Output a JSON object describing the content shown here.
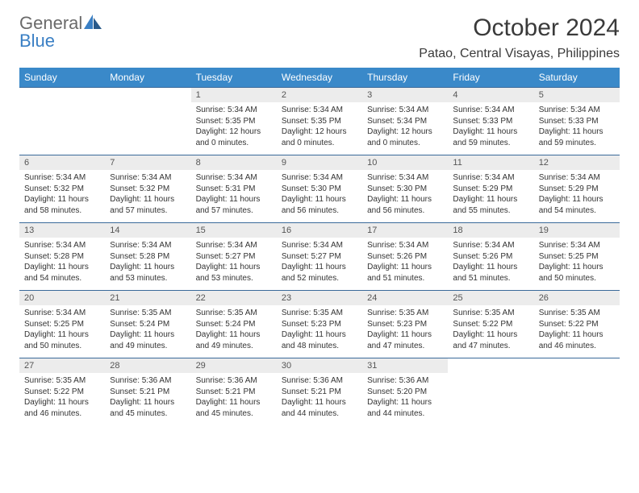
{
  "logo": {
    "general": "General",
    "blue": "Blue"
  },
  "title": "October 2024",
  "location": "Patao, Central Visayas, Philippines",
  "colors": {
    "header_bg": "#3a89c9",
    "header_text": "#ffffff",
    "daynum_bg": "#ececec",
    "border": "#3a6a9a",
    "logo_gray": "#6a6a6a",
    "logo_blue": "#3a7fc4"
  },
  "day_names": [
    "Sunday",
    "Monday",
    "Tuesday",
    "Wednesday",
    "Thursday",
    "Friday",
    "Saturday"
  ],
  "weeks": [
    [
      {
        "n": "",
        "sr": "",
        "ss": "",
        "dl": ""
      },
      {
        "n": "",
        "sr": "",
        "ss": "",
        "dl": ""
      },
      {
        "n": "1",
        "sr": "Sunrise: 5:34 AM",
        "ss": "Sunset: 5:35 PM",
        "dl": "Daylight: 12 hours and 0 minutes."
      },
      {
        "n": "2",
        "sr": "Sunrise: 5:34 AM",
        "ss": "Sunset: 5:35 PM",
        "dl": "Daylight: 12 hours and 0 minutes."
      },
      {
        "n": "3",
        "sr": "Sunrise: 5:34 AM",
        "ss": "Sunset: 5:34 PM",
        "dl": "Daylight: 12 hours and 0 minutes."
      },
      {
        "n": "4",
        "sr": "Sunrise: 5:34 AM",
        "ss": "Sunset: 5:33 PM",
        "dl": "Daylight: 11 hours and 59 minutes."
      },
      {
        "n": "5",
        "sr": "Sunrise: 5:34 AM",
        "ss": "Sunset: 5:33 PM",
        "dl": "Daylight: 11 hours and 59 minutes."
      }
    ],
    [
      {
        "n": "6",
        "sr": "Sunrise: 5:34 AM",
        "ss": "Sunset: 5:32 PM",
        "dl": "Daylight: 11 hours and 58 minutes."
      },
      {
        "n": "7",
        "sr": "Sunrise: 5:34 AM",
        "ss": "Sunset: 5:32 PM",
        "dl": "Daylight: 11 hours and 57 minutes."
      },
      {
        "n": "8",
        "sr": "Sunrise: 5:34 AM",
        "ss": "Sunset: 5:31 PM",
        "dl": "Daylight: 11 hours and 57 minutes."
      },
      {
        "n": "9",
        "sr": "Sunrise: 5:34 AM",
        "ss": "Sunset: 5:30 PM",
        "dl": "Daylight: 11 hours and 56 minutes."
      },
      {
        "n": "10",
        "sr": "Sunrise: 5:34 AM",
        "ss": "Sunset: 5:30 PM",
        "dl": "Daylight: 11 hours and 56 minutes."
      },
      {
        "n": "11",
        "sr": "Sunrise: 5:34 AM",
        "ss": "Sunset: 5:29 PM",
        "dl": "Daylight: 11 hours and 55 minutes."
      },
      {
        "n": "12",
        "sr": "Sunrise: 5:34 AM",
        "ss": "Sunset: 5:29 PM",
        "dl": "Daylight: 11 hours and 54 minutes."
      }
    ],
    [
      {
        "n": "13",
        "sr": "Sunrise: 5:34 AM",
        "ss": "Sunset: 5:28 PM",
        "dl": "Daylight: 11 hours and 54 minutes."
      },
      {
        "n": "14",
        "sr": "Sunrise: 5:34 AM",
        "ss": "Sunset: 5:28 PM",
        "dl": "Daylight: 11 hours and 53 minutes."
      },
      {
        "n": "15",
        "sr": "Sunrise: 5:34 AM",
        "ss": "Sunset: 5:27 PM",
        "dl": "Daylight: 11 hours and 53 minutes."
      },
      {
        "n": "16",
        "sr": "Sunrise: 5:34 AM",
        "ss": "Sunset: 5:27 PM",
        "dl": "Daylight: 11 hours and 52 minutes."
      },
      {
        "n": "17",
        "sr": "Sunrise: 5:34 AM",
        "ss": "Sunset: 5:26 PM",
        "dl": "Daylight: 11 hours and 51 minutes."
      },
      {
        "n": "18",
        "sr": "Sunrise: 5:34 AM",
        "ss": "Sunset: 5:26 PM",
        "dl": "Daylight: 11 hours and 51 minutes."
      },
      {
        "n": "19",
        "sr": "Sunrise: 5:34 AM",
        "ss": "Sunset: 5:25 PM",
        "dl": "Daylight: 11 hours and 50 minutes."
      }
    ],
    [
      {
        "n": "20",
        "sr": "Sunrise: 5:34 AM",
        "ss": "Sunset: 5:25 PM",
        "dl": "Daylight: 11 hours and 50 minutes."
      },
      {
        "n": "21",
        "sr": "Sunrise: 5:35 AM",
        "ss": "Sunset: 5:24 PM",
        "dl": "Daylight: 11 hours and 49 minutes."
      },
      {
        "n": "22",
        "sr": "Sunrise: 5:35 AM",
        "ss": "Sunset: 5:24 PM",
        "dl": "Daylight: 11 hours and 49 minutes."
      },
      {
        "n": "23",
        "sr": "Sunrise: 5:35 AM",
        "ss": "Sunset: 5:23 PM",
        "dl": "Daylight: 11 hours and 48 minutes."
      },
      {
        "n": "24",
        "sr": "Sunrise: 5:35 AM",
        "ss": "Sunset: 5:23 PM",
        "dl": "Daylight: 11 hours and 47 minutes."
      },
      {
        "n": "25",
        "sr": "Sunrise: 5:35 AM",
        "ss": "Sunset: 5:22 PM",
        "dl": "Daylight: 11 hours and 47 minutes."
      },
      {
        "n": "26",
        "sr": "Sunrise: 5:35 AM",
        "ss": "Sunset: 5:22 PM",
        "dl": "Daylight: 11 hours and 46 minutes."
      }
    ],
    [
      {
        "n": "27",
        "sr": "Sunrise: 5:35 AM",
        "ss": "Sunset: 5:22 PM",
        "dl": "Daylight: 11 hours and 46 minutes."
      },
      {
        "n": "28",
        "sr": "Sunrise: 5:36 AM",
        "ss": "Sunset: 5:21 PM",
        "dl": "Daylight: 11 hours and 45 minutes."
      },
      {
        "n": "29",
        "sr": "Sunrise: 5:36 AM",
        "ss": "Sunset: 5:21 PM",
        "dl": "Daylight: 11 hours and 45 minutes."
      },
      {
        "n": "30",
        "sr": "Sunrise: 5:36 AM",
        "ss": "Sunset: 5:21 PM",
        "dl": "Daylight: 11 hours and 44 minutes."
      },
      {
        "n": "31",
        "sr": "Sunrise: 5:36 AM",
        "ss": "Sunset: 5:20 PM",
        "dl": "Daylight: 11 hours and 44 minutes."
      },
      {
        "n": "",
        "sr": "",
        "ss": "",
        "dl": ""
      },
      {
        "n": "",
        "sr": "",
        "ss": "",
        "dl": ""
      }
    ]
  ]
}
